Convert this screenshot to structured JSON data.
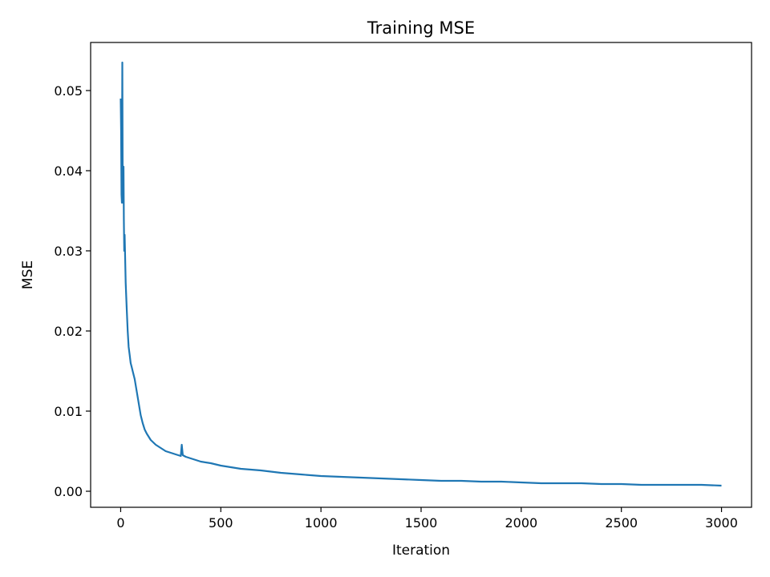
{
  "chart_data": {
    "type": "line",
    "title": "Training MSE",
    "xlabel": "Iteration",
    "ylabel": "MSE",
    "xlim": [
      -150,
      3150
    ],
    "ylim": [
      -0.002,
      0.056
    ],
    "x_ticks": [
      0,
      500,
      1000,
      1500,
      2000,
      2500,
      3000
    ],
    "x_tick_labels": [
      "0",
      "500",
      "1000",
      "1500",
      "2000",
      "2500",
      "3000"
    ],
    "y_ticks": [
      0.0,
      0.01,
      0.02,
      0.03,
      0.04,
      0.05
    ],
    "y_tick_labels": [
      "0.00",
      "0.01",
      "0.02",
      "0.03",
      "0.04",
      "0.05"
    ],
    "grid": false,
    "series": [
      {
        "color": "#1f77b4",
        "x": [
          0,
          2,
          4,
          6,
          8,
          10,
          12,
          14,
          16,
          18,
          20,
          25,
          30,
          35,
          40,
          45,
          50,
          55,
          60,
          70,
          80,
          90,
          100,
          110,
          120,
          130,
          140,
          150,
          175,
          200,
          225,
          250,
          275,
          300,
          305,
          310,
          325,
          350,
          375,
          400,
          450,
          500,
          550,
          600,
          650,
          700,
          800,
          900,
          1000,
          1100,
          1200,
          1300,
          1400,
          1500,
          1600,
          1700,
          1800,
          1900,
          2000,
          2100,
          2200,
          2300,
          2400,
          2500,
          2600,
          2700,
          2800,
          2900,
          3000
        ],
        "y": [
          0.049,
          0.045,
          0.037,
          0.036,
          0.0535,
          0.038,
          0.036,
          0.0405,
          0.034,
          0.03,
          0.032,
          0.026,
          0.023,
          0.02,
          0.018,
          0.017,
          0.016,
          0.0155,
          0.015,
          0.014,
          0.0125,
          0.011,
          0.0095,
          0.0085,
          0.0077,
          0.0072,
          0.0068,
          0.0064,
          0.0058,
          0.0054,
          0.005,
          0.0048,
          0.0046,
          0.0044,
          0.0058,
          0.0045,
          0.0043,
          0.0041,
          0.0039,
          0.0037,
          0.0035,
          0.0032,
          0.003,
          0.0028,
          0.0027,
          0.0026,
          0.0023,
          0.0021,
          0.0019,
          0.0018,
          0.0017,
          0.0016,
          0.0015,
          0.0014,
          0.0013,
          0.0013,
          0.0012,
          0.0012,
          0.0011,
          0.001,
          0.001,
          0.001,
          0.0009,
          0.0009,
          0.0008,
          0.0008,
          0.0008,
          0.0008,
          0.0007
        ]
      }
    ]
  }
}
